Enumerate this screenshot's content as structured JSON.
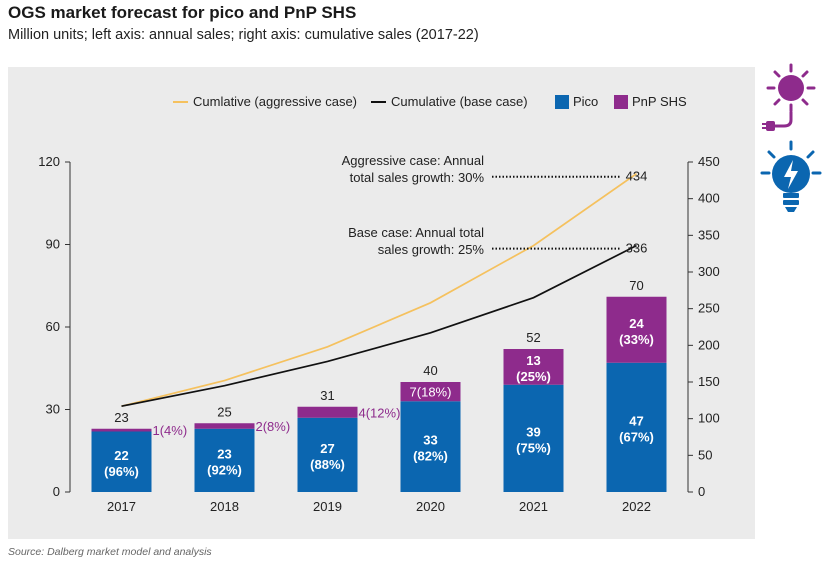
{
  "header": {
    "title": "OGS market forecast for pico and PnP SHS",
    "subtitle": "Million units; left axis: annual sales; right axis: cumulative sales (2017-22)"
  },
  "footer": {
    "source": "Source: Dalberg market model and analysis"
  },
  "icons": [
    "solar-sun-plug-icon",
    "solar-lightbulb-icon"
  ],
  "chart_data": {
    "type": "bar",
    "stacked": true,
    "categories": [
      "2017",
      "2018",
      "2019",
      "2020",
      "2021",
      "2022"
    ],
    "series": [
      {
        "name": "Pico",
        "color": "#0b66b0",
        "values": [
          22,
          23,
          27,
          33,
          39,
          47
        ],
        "labels": [
          "22\n(96%)",
          "23\n(92%)",
          "27\n(88%)",
          "33\n(82%)",
          "39\n(75%)",
          "47\n(67%)"
        ]
      },
      {
        "name": "PnP SHS",
        "color": "#8e2b8c",
        "values": [
          1,
          2,
          4,
          7,
          13,
          24
        ],
        "labels": [
          "1(4%)",
          "2(8%)",
          "4(12%)",
          "7(18%)",
          "13\n(25%)",
          "24\n(33%)"
        ]
      }
    ],
    "totals": [
      23,
      25,
      31,
      40,
      52,
      70
    ],
    "lines": [
      {
        "name": "Cumlative (aggressive case)",
        "color": "#f5c15e",
        "axis": "right",
        "values": [
          117,
          152,
          198,
          258,
          336,
          434
        ],
        "end_label": "434"
      },
      {
        "name": "Cumulative (base case)",
        "color": "#111111",
        "axis": "right",
        "values": [
          117,
          145,
          178,
          217,
          265,
          336
        ],
        "end_label": "336"
      }
    ],
    "annotations": [
      {
        "text": [
          "Aggressive case: Annual",
          "total sales growth: 30%"
        ],
        "target_value": 434
      },
      {
        "text": [
          "Base case: Annual total",
          "sales growth: 25%"
        ],
        "target_value": 336
      }
    ],
    "y_left": {
      "min": 0,
      "max": 120,
      "ticks": [
        0,
        30,
        60,
        90,
        120
      ]
    },
    "y_right": {
      "min": 0,
      "max": 450,
      "ticks": [
        0,
        50,
        100,
        150,
        200,
        250,
        300,
        350,
        400,
        450
      ]
    },
    "legend": {
      "position": "top",
      "order": [
        "Cumlative (aggressive case)",
        "Cumulative (base case)",
        "Pico",
        "PnP SHS"
      ]
    },
    "grid": false
  }
}
